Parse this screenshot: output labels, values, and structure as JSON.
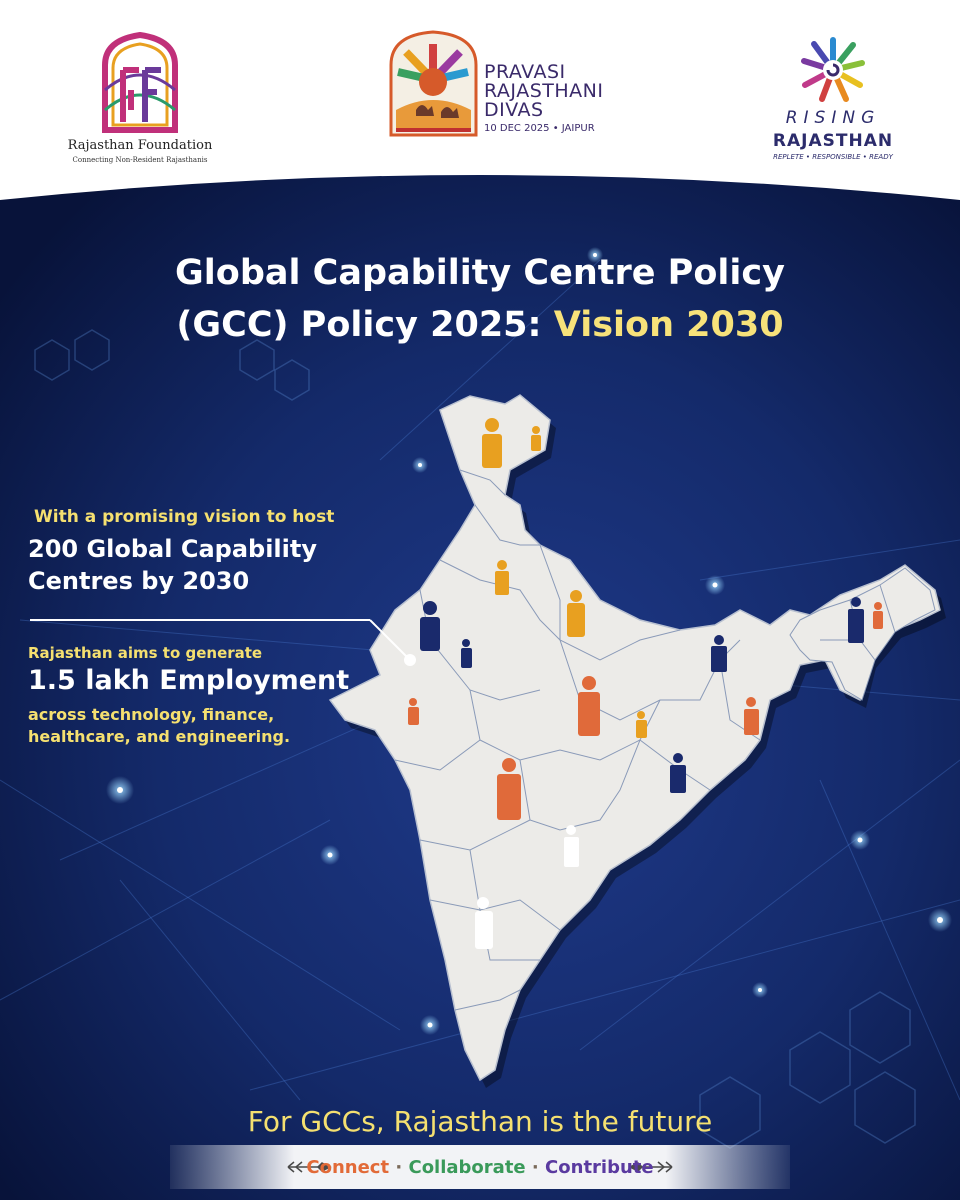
{
  "header": {
    "rajasthan_foundation": {
      "name": "Rajasthan Foundation",
      "tagline": "Connecting Non-Resident Rajasthanis",
      "monogram": "RF"
    },
    "pravasi": {
      "line1": "PRAVASI",
      "line2": "RAJASTHANI",
      "line3": "DIVAS",
      "date": "10 DEC 2025 • JAIPUR"
    },
    "rising": {
      "line1": "RISING",
      "line2": "RAJASTHAN",
      "tagline": "REPLETE • RESPONSIBLE • READY"
    }
  },
  "title": {
    "line1": "Global Capability Centre Policy",
    "line2_prefix": "(GCC) Policy 2025: ",
    "line2_highlight": "Vision 2030"
  },
  "callouts": {
    "vision_intro": "With a promising vision to host",
    "vision_line1": "200 Global Capability",
    "vision_line2": "Centres by 2030",
    "employment_intro": "Rajasthan aims to generate",
    "employment_value": "1.5 lakh Employment",
    "employment_sectors_line1": "across technology, finance,",
    "employment_sectors_line2": "healthcare, and engineering."
  },
  "footer": {
    "headline": "For GCCs, Rajasthan is the future",
    "words": [
      "Connect",
      "Collaborate",
      "Contribute"
    ],
    "separator": "·"
  },
  "colors": {
    "navy": "#1a2a6c",
    "deep_navy": "#0d1a4a",
    "yellow": "#f5e070",
    "orange": "#e06a3a",
    "amber": "#e8a020",
    "map": "#ecebe8"
  },
  "icons": [
    "person-pin-icon",
    "arrow-ornament-icon"
  ]
}
